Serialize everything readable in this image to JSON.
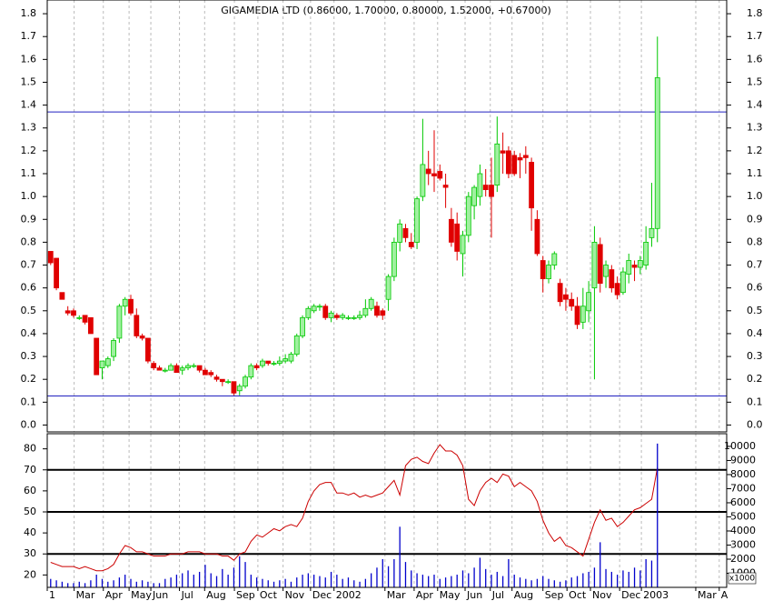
{
  "chart_data": [
    {
      "type": "candlestick",
      "title": "GIGAMEDIA LTD (0.86000, 1.70000, 0.80000, 1.52000, +0.67000)",
      "x": [
        0,
        1,
        2,
        3,
        4,
        5,
        6,
        7,
        8,
        9,
        10,
        11,
        12,
        13,
        14,
        15,
        16,
        17,
        18,
        19,
        20,
        21,
        22,
        23,
        24,
        25,
        26,
        27,
        28,
        29,
        30,
        31,
        32,
        33,
        34,
        35,
        36,
        37,
        38,
        39,
        40,
        41,
        42,
        43,
        44,
        45,
        46,
        47,
        48,
        49,
        50,
        51,
        52,
        53,
        54,
        55,
        56,
        57,
        58,
        59,
        60,
        61,
        62,
        63,
        64,
        65,
        66,
        67,
        68,
        69,
        70,
        71,
        72,
        73,
        74,
        75,
        76,
        77,
        78,
        79,
        80,
        81,
        82,
        83,
        84,
        85,
        86,
        87,
        88,
        89,
        90,
        91,
        92,
        93,
        94,
        95,
        96,
        97,
        98,
        99,
        100,
        101,
        102,
        103,
        104,
        105,
        106
      ],
      "open": [
        0.76,
        0.73,
        0.58,
        0.5,
        0.5,
        0.47,
        0.48,
        0.47,
        0.38,
        0.25,
        0.26,
        0.3,
        0.38,
        0.52,
        0.55,
        0.48,
        0.39,
        0.38,
        0.27,
        0.25,
        0.24,
        0.24,
        0.26,
        0.24,
        0.25,
        0.26,
        0.26,
        0.24,
        0.23,
        0.21,
        0.2,
        0.19,
        0.19,
        0.15,
        0.17,
        0.21,
        0.26,
        0.26,
        0.28,
        0.27,
        0.27,
        0.28,
        0.28,
        0.31,
        0.39,
        0.47,
        0.5,
        0.52,
        0.52,
        0.47,
        0.48,
        0.47,
        0.47,
        0.47,
        0.47,
        0.48,
        0.51,
        0.52,
        0.5,
        0.55,
        0.65,
        0.8,
        0.86,
        0.8,
        0.8,
        1.0,
        1.12,
        1.1,
        1.11,
        1.05,
        0.9,
        0.88,
        0.75,
        0.83,
        0.96,
        1.0,
        1.05,
        1.05,
        1.05,
        1.2,
        1.2,
        1.18,
        1.17,
        1.18,
        1.15,
        0.9,
        0.72,
        0.64,
        0.7,
        0.62,
        0.57,
        0.55,
        0.52,
        0.45,
        0.5,
        0.6,
        0.79,
        0.65,
        0.68,
        0.62,
        0.58,
        0.66,
        0.7,
        0.69,
        0.7,
        0.82,
        0.86
      ],
      "high": [
        0.76,
        0.73,
        0.58,
        0.52,
        0.51,
        0.48,
        0.48,
        0.47,
        0.38,
        0.28,
        0.3,
        0.38,
        0.53,
        0.56,
        0.57,
        0.51,
        0.4,
        0.38,
        0.28,
        0.26,
        0.25,
        0.27,
        0.27,
        0.26,
        0.27,
        0.27,
        0.26,
        0.25,
        0.24,
        0.22,
        0.2,
        0.2,
        0.19,
        0.18,
        0.22,
        0.27,
        0.27,
        0.29,
        0.28,
        0.28,
        0.3,
        0.31,
        0.32,
        0.4,
        0.48,
        0.52,
        0.53,
        0.53,
        0.53,
        0.5,
        0.49,
        0.49,
        0.48,
        0.48,
        0.5,
        0.55,
        0.56,
        0.54,
        0.51,
        0.66,
        0.82,
        0.9,
        0.88,
        0.84,
        1.0,
        1.34,
        1.2,
        1.29,
        1.14,
        1.1,
        0.95,
        0.93,
        0.85,
        1.02,
        1.05,
        1.14,
        1.12,
        1.17,
        1.35,
        1.28,
        1.22,
        1.2,
        1.19,
        1.22,
        1.17,
        0.94,
        0.74,
        0.72,
        0.76,
        0.64,
        0.6,
        0.58,
        0.56,
        0.6,
        0.63,
        0.87,
        0.82,
        0.72,
        0.7,
        0.65,
        0.69,
        0.75,
        0.72,
        0.74,
        0.87,
        1.06,
        1.7
      ],
      "low": [
        0.7,
        0.59,
        0.55,
        0.48,
        0.47,
        0.46,
        0.44,
        0.4,
        0.22,
        0.2,
        0.25,
        0.28,
        0.36,
        0.48,
        0.48,
        0.38,
        0.37,
        0.27,
        0.24,
        0.24,
        0.23,
        0.24,
        0.23,
        0.22,
        0.24,
        0.25,
        0.23,
        0.22,
        0.21,
        0.19,
        0.17,
        0.18,
        0.13,
        0.13,
        0.16,
        0.2,
        0.24,
        0.25,
        0.26,
        0.26,
        0.26,
        0.27,
        0.27,
        0.3,
        0.38,
        0.46,
        0.49,
        0.5,
        0.46,
        0.45,
        0.46,
        0.46,
        0.46,
        0.46,
        0.46,
        0.47,
        0.5,
        0.47,
        0.46,
        0.5,
        0.63,
        0.76,
        0.8,
        0.77,
        0.77,
        0.98,
        1.05,
        1.02,
        1.07,
        0.95,
        0.78,
        0.72,
        0.65,
        0.8,
        0.9,
        0.96,
        1.0,
        0.82,
        1.02,
        1.1,
        1.08,
        1.09,
        1.08,
        1.1,
        0.85,
        0.74,
        0.58,
        0.62,
        0.68,
        0.52,
        0.5,
        0.5,
        0.42,
        0.42,
        0.45,
        0.2,
        0.58,
        0.6,
        0.58,
        0.55,
        0.57,
        0.62,
        0.63,
        0.66,
        0.68,
        0.78,
        0.8
      ],
      "close": [
        0.71,
        0.6,
        0.55,
        0.49,
        0.48,
        0.47,
        0.45,
        0.4,
        0.22,
        0.28,
        0.29,
        0.37,
        0.52,
        0.55,
        0.49,
        0.39,
        0.38,
        0.28,
        0.25,
        0.24,
        0.24,
        0.26,
        0.23,
        0.25,
        0.26,
        0.26,
        0.24,
        0.22,
        0.22,
        0.2,
        0.19,
        0.19,
        0.14,
        0.17,
        0.21,
        0.26,
        0.25,
        0.28,
        0.27,
        0.27,
        0.28,
        0.29,
        0.31,
        0.39,
        0.47,
        0.51,
        0.52,
        0.52,
        0.47,
        0.49,
        0.47,
        0.48,
        0.47,
        0.47,
        0.48,
        0.51,
        0.55,
        0.48,
        0.48,
        0.65,
        0.8,
        0.88,
        0.82,
        0.78,
        0.99,
        1.14,
        1.1,
        1.09,
        1.08,
        1.04,
        0.8,
        0.76,
        0.83,
        1.0,
        1.04,
        1.1,
        1.03,
        1.0,
        1.23,
        1.19,
        1.1,
        1.1,
        1.16,
        1.17,
        0.95,
        0.75,
        0.64,
        0.7,
        0.75,
        0.54,
        0.55,
        0.52,
        0.44,
        0.52,
        0.58,
        0.8,
        0.62,
        0.7,
        0.6,
        0.57,
        0.67,
        0.72,
        0.69,
        0.72,
        0.8,
        0.86,
        1.52
      ],
      "up_color": "#00c800",
      "up_fill": "#a0f0a0",
      "down_color": "#e00000",
      "hlines": [
        1.37,
        0.127
      ],
      "hline_color": "#2020c0",
      "xlim": [
        -0.6,
        118.1
      ],
      "ylim": [
        -0.03,
        1.86
      ],
      "yticks": [
        {
          "value": 0,
          "label": "0.0"
        },
        0.1,
        0.2,
        0.3,
        0.4,
        0.5,
        0.6,
        0.7,
        0.8,
        0.9,
        {
          "value": 1,
          "label": "1.0"
        },
        1.1,
        1.2,
        1.3,
        1.4,
        1.5,
        1.6,
        1.7,
        1.8
      ],
      "grid": true
    },
    {
      "type": "line",
      "x": [
        0,
        1,
        2,
        3,
        4,
        5,
        6,
        7,
        8,
        9,
        10,
        11,
        12,
        13,
        14,
        15,
        16,
        17,
        18,
        19,
        20,
        21,
        22,
        23,
        24,
        25,
        26,
        27,
        28,
        29,
        30,
        31,
        32,
        33,
        34,
        35,
        36,
        37,
        38,
        39,
        40,
        41,
        42,
        43,
        44,
        45,
        46,
        47,
        48,
        49,
        50,
        51,
        52,
        53,
        54,
        55,
        56,
        57,
        58,
        59,
        60,
        61,
        62,
        63,
        64,
        65,
        66,
        67,
        68,
        69,
        70,
        71,
        72,
        73,
        74,
        75,
        76,
        77,
        78,
        79,
        80,
        81,
        82,
        83,
        84,
        85,
        86,
        87,
        88,
        89,
        90,
        91,
        92,
        93,
        94,
        95,
        96,
        97,
        98,
        99,
        100,
        101,
        102,
        103,
        104,
        105,
        106
      ],
      "series": [
        {
          "color": "#cc0000",
          "values": [
            26,
            25,
            24,
            24,
            24,
            23,
            24,
            23,
            22,
            22,
            23,
            25,
            30,
            34,
            33,
            31,
            31,
            30,
            29,
            29,
            29,
            30,
            30,
            30,
            31,
            31,
            31,
            30,
            30,
            30,
            29,
            29,
            27,
            30,
            31,
            36,
            39,
            38,
            40,
            42,
            41,
            43,
            44,
            43,
            47,
            55,
            60,
            63,
            64,
            64,
            59,
            59,
            58,
            59,
            57,
            58,
            57,
            58,
            59,
            62,
            65,
            58,
            72,
            75,
            76,
            74,
            73,
            78,
            82,
            79,
            79,
            77,
            72,
            56,
            53,
            60,
            64,
            66,
            64,
            68,
            67,
            62,
            64,
            62,
            60,
            55,
            46,
            40,
            36,
            38,
            34,
            33,
            31,
            29,
            37,
            45,
            51,
            46,
            47,
            43,
            45,
            48,
            51,
            52,
            54,
            56,
            71
          ]
        },
        {
          "color": "#0000cc",
          "type": "bar",
          "axis": "y2",
          "values": [
            600,
            500,
            400,
            300,
            300,
            400,
            300,
            500,
            900,
            600,
            400,
            500,
            700,
            900,
            600,
            400,
            500,
            400,
            300,
            300,
            600,
            700,
            900,
            1000,
            1200,
            900,
            1100,
            1600,
            1000,
            800,
            1300,
            900,
            1400,
            2200,
            1800,
            900,
            700,
            600,
            500,
            400,
            500,
            600,
            400,
            700,
            900,
            1000,
            900,
            800,
            700,
            1100,
            900,
            600,
            700,
            500,
            400,
            600,
            1000,
            1400,
            2000,
            1500,
            2000,
            4300,
            1800,
            1200,
            1000,
            900,
            800,
            900,
            600,
            700,
            800,
            900,
            1200,
            1000,
            1400,
            2100,
            1300,
            900,
            1100,
            800,
            2000,
            900,
            700,
            600,
            500,
            600,
            800,
            600,
            500,
            400,
            500,
            700,
            800,
            1000,
            1100,
            1400,
            3200,
            1300,
            1100,
            900,
            1200,
            1100,
            1400,
            1200,
            2000,
            1900,
            10200
          ]
        }
      ],
      "hlines": [
        70,
        50,
        30
      ],
      "hline_color": "#000000",
      "xlim": [
        -0.6,
        118.1
      ],
      "xticks": [
        {
          "value": -0.6,
          "label": "1"
        },
        {
          "value": 4.1,
          "label": "Mar"
        },
        {
          "value": 9.2,
          "label": "Apr"
        },
        {
          "value": 13.7,
          "label": "May"
        },
        {
          "value": 17.5,
          "label": "Jun"
        },
        {
          "value": 22.5,
          "label": "Jul"
        },
        {
          "value": 26.9,
          "label": "Aug"
        },
        {
          "value": 32.1,
          "label": "Sep"
        },
        {
          "value": 36.2,
          "label": "Oct"
        },
        {
          "value": 40.6,
          "label": "Nov"
        },
        {
          "value": 45.4,
          "label": "Dec"
        },
        {
          "value": 49.5,
          "label": "2002"
        },
        {
          "value": 58.4,
          "label": "Mar"
        },
        {
          "value": 63.5,
          "label": "Apr"
        },
        {
          "value": 67.6,
          "label": "May"
        },
        {
          "value": 72.4,
          "label": "Jun"
        },
        {
          "value": 76.8,
          "label": "Jul"
        },
        {
          "value": 80.6,
          "label": "Aug"
        },
        {
          "value": 86,
          "label": "Sep"
        },
        {
          "value": 90.2,
          "label": "Oct"
        },
        {
          "value": 94.3,
          "label": "Nov"
        },
        {
          "value": 99.4,
          "label": "Dec"
        },
        {
          "value": 103.2,
          "label": "2003"
        },
        {
          "value": 112.7,
          "label": "Mar"
        },
        {
          "value": 116.8,
          "label": "A"
        }
      ],
      "ylim": [
        14.1,
        87.2
      ],
      "yticks": [
        20,
        30,
        40,
        50,
        60,
        70,
        80
      ],
      "y2lim": [
        0,
        10900
      ],
      "y2ticks": [
        1000,
        2000,
        3000,
        4000,
        5000,
        6000,
        7000,
        8000,
        9000,
        10000
      ],
      "y2label": "x1000",
      "grid": true
    }
  ]
}
